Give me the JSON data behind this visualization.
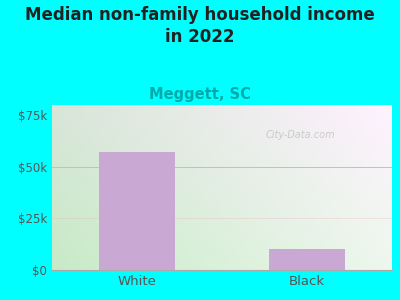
{
  "title": "Median non-family household income\nin 2022",
  "subtitle": "Meggett, SC",
  "categories": [
    "White",
    "Black"
  ],
  "values": [
    57000,
    10000
  ],
  "bar_color": "#c9a8d4",
  "outer_bg": "#00FFFF",
  "yticks": [
    0,
    25000,
    50000,
    75000
  ],
  "ytick_labels": [
    "$0",
    "$25k",
    "$50k",
    "$75k"
  ],
  "ylim": [
    0,
    80000
  ],
  "title_fontsize": 12,
  "subtitle_fontsize": 10.5,
  "subtitle_color": "#00AAAA",
  "tick_color": "#555555",
  "grid_color": "#e8b0b0",
  "watermark": "City-Data.com"
}
